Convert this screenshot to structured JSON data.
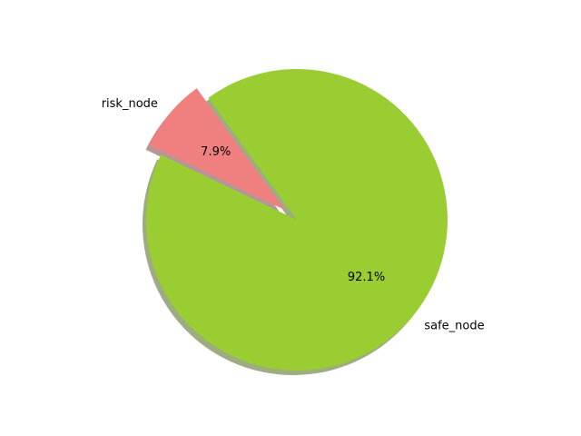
{
  "chart_data": {
    "type": "pie",
    "title": "",
    "shadow": true,
    "slices": [
      {
        "label": "risk_node",
        "value": 7.9,
        "pct_label": "7.9%",
        "color": "#f08080",
        "exploded": true
      },
      {
        "label": "safe_node",
        "value": 92.1,
        "pct_label": "92.1%",
        "color": "#9acd32",
        "exploded": false
      }
    ]
  }
}
